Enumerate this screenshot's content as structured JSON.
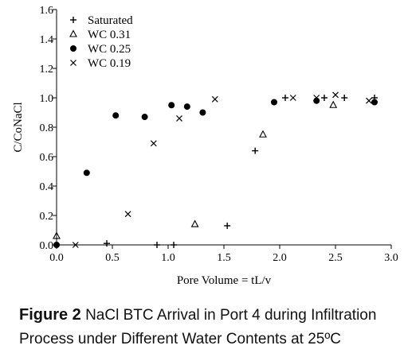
{
  "chart_data": {
    "type": "scatter",
    "xlabel": "Pore Volume = tL/v",
    "ylabel": "C/CoNaCl",
    "xlim": [
      0,
      3.0
    ],
    "ylim": [
      0,
      1.6
    ],
    "xticks": [
      "0.0",
      "0.5",
      "1.0",
      "1.5",
      "2.0",
      "2.5",
      "3.0"
    ],
    "yticks": [
      "0.0",
      "0.2",
      "0.4",
      "0.6",
      "0.8",
      "1.0",
      "1.2",
      "1.4",
      "1.6"
    ],
    "grid": false,
    "legend_position": "top-left",
    "series": [
      {
        "name": "Saturated",
        "marker": "plus",
        "x": [
          0.45,
          0.9,
          1.05,
          1.53,
          1.78,
          2.05,
          2.4,
          2.58,
          2.85
        ],
        "y": [
          0.01,
          0.0,
          0.0,
          0.13,
          0.64,
          1.0,
          1.0,
          1.0,
          1.0
        ]
      },
      {
        "name": "WC 0.31",
        "marker": "triangle",
        "x": [
          0.0,
          1.24,
          1.85,
          2.48
        ],
        "y": [
          0.06,
          0.14,
          0.75,
          0.95
        ]
      },
      {
        "name": "WC 0.25",
        "marker": "circle",
        "x": [
          0.0,
          0.27,
          0.53,
          0.79,
          1.03,
          1.17,
          1.31,
          1.95,
          2.33,
          2.85
        ],
        "y": [
          0.0,
          0.49,
          0.88,
          0.87,
          0.95,
          0.94,
          0.9,
          0.97,
          0.98,
          0.97
        ]
      },
      {
        "name": "WC 0.19",
        "marker": "x",
        "x": [
          0.17,
          0.64,
          0.87,
          1.1,
          1.42,
          2.12,
          2.33,
          2.5,
          2.8
        ],
        "y": [
          0.0,
          0.21,
          0.69,
          0.86,
          0.99,
          1.0,
          1.0,
          1.02,
          0.98
        ]
      }
    ]
  },
  "caption": {
    "label": "Figure 2",
    "text": "NaCl BTC Arrival in Port 4 during Infiltration Process under Different Water Contents at 25ºC"
  }
}
